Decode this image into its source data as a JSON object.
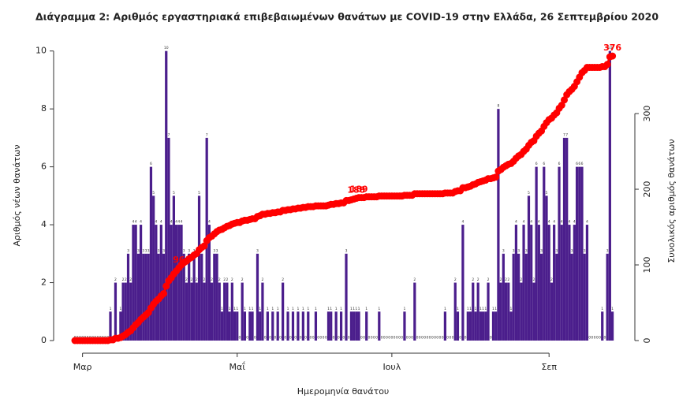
{
  "chart_data": {
    "type": "bar-line",
    "title": "Διάγραμμα 2: Αριθμός εργαστηριακά επιβεβαιωμένων θανάτων με COVID-19 στην Ελλάδα, 26 Σεπτεμβρίου 2020",
    "x_label": "Ημερομηνία θανάτου",
    "y_label": "Αριθμός νέων θανάτων",
    "y2_label": "Συνολικός αριθμός θανάτων",
    "categories": [
      null,
      null,
      null,
      "Μαρ",
      null,
      null,
      null,
      null,
      null,
      null,
      null,
      null,
      null,
      null,
      null,
      null,
      null,
      null,
      null,
      null,
      null,
      null,
      null,
      null,
      null,
      null,
      null,
      null,
      null,
      null,
      null,
      null,
      null,
      null,
      null,
      null,
      null,
      null,
      null,
      null,
      null,
      null,
      null,
      null,
      null,
      null,
      null,
      null,
      null,
      null,
      null,
      null,
      null,
      null,
      null,
      null,
      null,
      null,
      null,
      null,
      null,
      null,
      null,
      null,
      "Μαΐ",
      null,
      null,
      null,
      null,
      null,
      null,
      null,
      null,
      null,
      null,
      null,
      null,
      null,
      null,
      null,
      null,
      null,
      null,
      null,
      null,
      null,
      null,
      null,
      null,
      null,
      null,
      null,
      null,
      null,
      null,
      null,
      null,
      null,
      null,
      null,
      null,
      null,
      null,
      null,
      null,
      null,
      null,
      null,
      null,
      null,
      null,
      null,
      null,
      null,
      null,
      null,
      null,
      null,
      null,
      null,
      null,
      null,
      null,
      null,
      null,
      "Ιουλ",
      null,
      null,
      null,
      null,
      null,
      null,
      null,
      null,
      null,
      null,
      null,
      null,
      null,
      null,
      null,
      null,
      null,
      null,
      null,
      null,
      null,
      null,
      null,
      null,
      null,
      null,
      null,
      null,
      null,
      null,
      null,
      null,
      null,
      null,
      null,
      null,
      null,
      null,
      null,
      null,
      null,
      null,
      null,
      null,
      null,
      null,
      null,
      null,
      null,
      null,
      null,
      null,
      null,
      null,
      null,
      null,
      null,
      null,
      null,
      null,
      null,
      "Σεπ",
      null,
      null,
      null,
      null,
      null,
      null,
      null,
      null,
      null,
      null,
      null,
      null,
      null,
      null,
      null,
      null,
      null,
      null,
      null,
      null,
      null,
      null,
      null,
      null,
      null
    ],
    "series": [
      {
        "type": "bar",
        "color": "#4b1e8c",
        "values": [
          0,
          0,
          0,
          0,
          0,
          0,
          0,
          0,
          0,
          0,
          0,
          0,
          0,
          0,
          1,
          0,
          2,
          0,
          1,
          2,
          2,
          3,
          2,
          4,
          4,
          3,
          4,
          3,
          3,
          3,
          6,
          5,
          4,
          3,
          4,
          3,
          10,
          7,
          4,
          5,
          4,
          4,
          4,
          3,
          2,
          3,
          2,
          3,
          2,
          5,
          3,
          2,
          7,
          4,
          2,
          3,
          3,
          2,
          1,
          2,
          2,
          1,
          2,
          1,
          1,
          0,
          2,
          1,
          0,
          1,
          1,
          0,
          3,
          1,
          2,
          0,
          1,
          0,
          1,
          0,
          1,
          0,
          2,
          0,
          1,
          0,
          1,
          0,
          1,
          0,
          1,
          0,
          1,
          0,
          0,
          1,
          0,
          0,
          0,
          0,
          1,
          1,
          0,
          1,
          0,
          1,
          0,
          3,
          0,
          1,
          1,
          1,
          1,
          0,
          0,
          1,
          0,
          0,
          0,
          0,
          1,
          0,
          0,
          0,
          0,
          0,
          0,
          0,
          0,
          0,
          1,
          0,
          0,
          0,
          2,
          0,
          0,
          0,
          0,
          0,
          0,
          0,
          0,
          0,
          0,
          0,
          1,
          0,
          0,
          0,
          2,
          1,
          0,
          4,
          0,
          1,
          1,
          2,
          1,
          2,
          1,
          1,
          1,
          2,
          0,
          1,
          1,
          8,
          2,
          3,
          2,
          2,
          1,
          3,
          4,
          3,
          2,
          4,
          3,
          5,
          4,
          2,
          6,
          4,
          3,
          6,
          5,
          4,
          2,
          4,
          3,
          6,
          4,
          7,
          7,
          4,
          3,
          4,
          6,
          6,
          6,
          3,
          4,
          0,
          0,
          0,
          0,
          0,
          1,
          0,
          3,
          10,
          1
        ]
      },
      {
        "type": "line",
        "axis": "y2",
        "color": "#ff0000",
        "labeled_points": [
          41,
          111,
          112,
          212
        ],
        "values": [
          0,
          0,
          0,
          0,
          0,
          0,
          0,
          0,
          0,
          0,
          0,
          0,
          0,
          0,
          1,
          1,
          3,
          3,
          4,
          6,
          8,
          11,
          13,
          17,
          21,
          24,
          28,
          31,
          34,
          37,
          43,
          48,
          52,
          55,
          59,
          62,
          72,
          79,
          83,
          88,
          92,
          96,
          100,
          103,
          105,
          108,
          110,
          113,
          115,
          120,
          123,
          125,
          132,
          136,
          138,
          141,
          144,
          146,
          147,
          149,
          151,
          152,
          154,
          155,
          156,
          156,
          158,
          159,
          159,
          160,
          161,
          161,
          164,
          165,
          167,
          167,
          168,
          168,
          169,
          169,
          170,
          170,
          172,
          172,
          173,
          173,
          174,
          174,
          175,
          175,
          176,
          176,
          177,
          177,
          177,
          178,
          178,
          178,
          178,
          178,
          179,
          180,
          180,
          181,
          181,
          182,
          182,
          185,
          185,
          186,
          187,
          188,
          189,
          189,
          189,
          190,
          190,
          190,
          190,
          190,
          191,
          191,
          191,
          191,
          191,
          191,
          191,
          191,
          191,
          191,
          192,
          192,
          192,
          192,
          194,
          194,
          194,
          194,
          194,
          194,
          194,
          194,
          194,
          194,
          194,
          194,
          195,
          195,
          195,
          195,
          197,
          198,
          198,
          202,
          202,
          203,
          204,
          206,
          207,
          209,
          210,
          211,
          212,
          214,
          214,
          215,
          216,
          224,
          226,
          229,
          231,
          233,
          234,
          237,
          241,
          244,
          246,
          250,
          253,
          258,
          262,
          264,
          270,
          274,
          277,
          283,
          288,
          292,
          294,
          298,
          301,
          307,
          311,
          318,
          325,
          329,
          332,
          336,
          342,
          348,
          354,
          357,
          361,
          361,
          361,
          361,
          361,
          361,
          362,
          362,
          365,
          375,
          376
        ]
      }
    ],
    "ylim": [
      0,
      10.4
    ],
    "yticks": [
      0,
      2,
      4,
      6,
      8,
      10
    ],
    "y2lim": [
      0,
      398
    ],
    "y2ticks": [
      0,
      100,
      200,
      300
    ]
  }
}
